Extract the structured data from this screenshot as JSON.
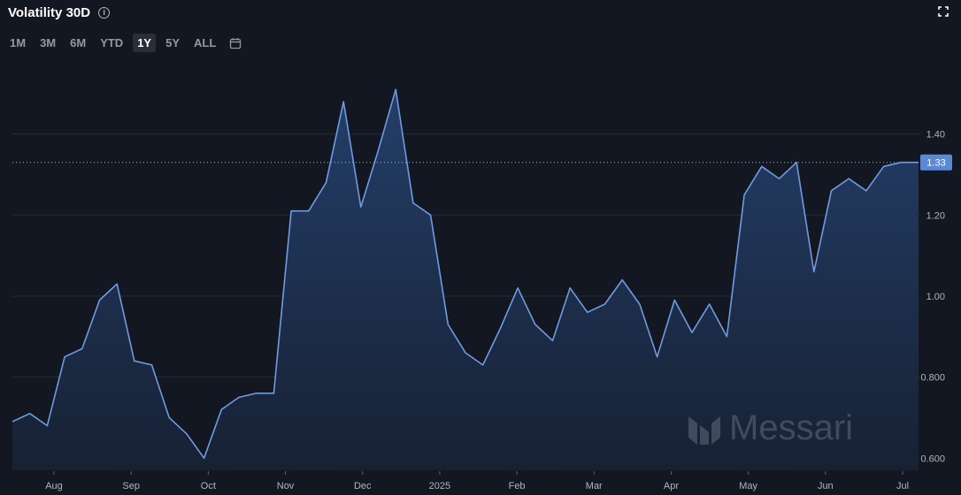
{
  "header": {
    "title": "Volatility 30D",
    "info_icon": "info-icon",
    "expand_icon": "expand-icon"
  },
  "ranges": [
    {
      "label": "1M",
      "active": false
    },
    {
      "label": "3M",
      "active": false
    },
    {
      "label": "6M",
      "active": false
    },
    {
      "label": "YTD",
      "active": false
    },
    {
      "label": "1Y",
      "active": true
    },
    {
      "label": "5Y",
      "active": false
    },
    {
      "label": "ALL",
      "active": false
    }
  ],
  "calendar_icon": "calendar-icon",
  "watermark": "Messari",
  "colors": {
    "background": "#131722",
    "line": "#6f9be0",
    "fill_top": "#24416d",
    "fill_bottom": "#182236",
    "grid": "#262b38",
    "label_bg": "#5b89d6"
  },
  "chart_data": {
    "type": "area",
    "title": "Volatility 30D",
    "x_ticks": [
      "Aug",
      "Sep",
      "Oct",
      "Nov",
      "Dec",
      "2025",
      "Feb",
      "Mar",
      "Apr",
      "May",
      "Jun",
      "Jul"
    ],
    "y_ticks": [
      "0.600",
      "0.800",
      "1.00",
      "1.20",
      "1.40"
    ],
    "ylim": [
      0.57,
      1.6
    ],
    "grid": true,
    "last_value_label": "1.33",
    "series": [
      {
        "values": [
          0.69,
          0.71,
          0.68,
          0.85,
          0.87,
          0.99,
          1.03,
          0.84,
          0.83,
          0.7,
          0.66,
          0.6,
          0.72,
          0.75,
          0.76,
          0.76,
          1.21,
          1.21,
          1.28,
          1.48,
          1.22,
          1.36,
          1.51,
          1.23,
          1.2,
          0.93,
          0.86,
          0.83,
          0.92,
          1.02,
          0.93,
          0.89,
          1.02,
          0.96,
          0.98,
          1.04,
          0.98,
          0.85,
          0.99,
          0.91,
          0.98,
          0.9,
          1.25,
          1.32,
          1.29,
          1.33,
          1.06,
          1.26,
          1.29,
          1.26,
          1.32,
          1.33,
          1.33
        ]
      }
    ]
  }
}
